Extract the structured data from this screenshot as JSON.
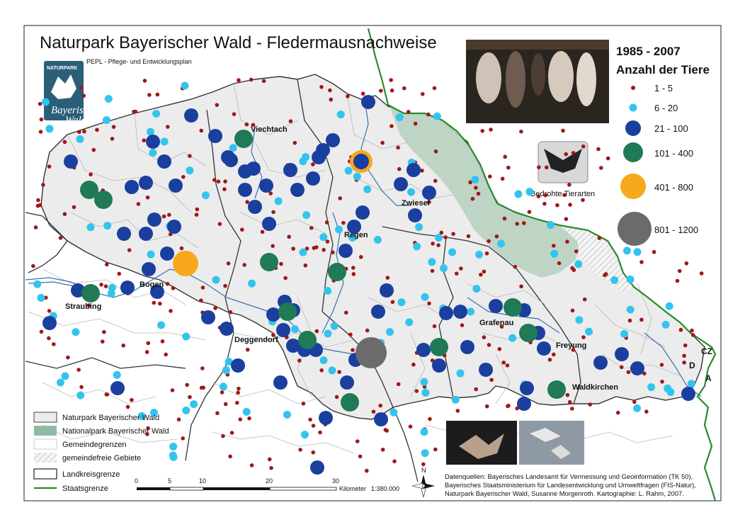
{
  "title": "Naturpark Bayerischer Wald - Fledermausnachweise",
  "subtitle": "PEPL - Pflege- und Entwicklungsplan",
  "period": "1985 - 2007",
  "count_legend": {
    "heading": "Anzahl der Tiere",
    "classes": [
      {
        "label": "1 - 5",
        "color": "#a01818"
      },
      {
        "label": "6 - 20",
        "color": "#33c4ee"
      },
      {
        "label": "21 - 100",
        "color": "#1a3f9e"
      },
      {
        "label": "101 - 400",
        "color": "#1f7a55"
      },
      {
        "label": "401 - 800",
        "color": "#f7a81b"
      },
      {
        "label": "801 - 1200",
        "color": "#6b6b6b"
      }
    ]
  },
  "badge_text": "Bedrohte Tierarten",
  "logo": {
    "top_text": "NATURPARK",
    "name_line1": "Bayerischer",
    "name_line2": "Wald"
  },
  "towns": [
    "Viechtach",
    "Zwiesel",
    "Regen",
    "Bogen",
    "Straubing",
    "Deggendorf",
    "Grafenau",
    "Freyung",
    "Waldkirchen"
  ],
  "countries": [
    "CZ",
    "D",
    "A"
  ],
  "area_legend": [
    {
      "label": "Naturpark Bayerischer Wald",
      "swatch": "naturpark"
    },
    {
      "label": "Nationalpark Bayerischer Wald",
      "swatch": "nationalpark"
    },
    {
      "label": "Gemeindegrenzen",
      "swatch": "gemeinde"
    },
    {
      "label": "gemeindefreie Gebiete",
      "swatch": "hatched"
    },
    {
      "label": "Landkreisgrenze",
      "swatch": "landkreis"
    },
    {
      "label": "Staatsgrenze",
      "swatch": "staat"
    }
  ],
  "scale": {
    "ticks": [
      "0",
      "5",
      "10",
      "20",
      "30"
    ],
    "unit": "Kilometer",
    "ratio": "1:380.000"
  },
  "north_label": "N",
  "sources": [
    "Datenquellen: Bayerisches Landesamt für Vermessung und Geoinformation (TK 50),",
    "Bayerisches Staatsministerium für Landesentwicklung und Umweltfragen (FIS-Natur),",
    "Naturpark Bayerischer Wald, Susanne Morgenroth. Kartographie: L. Rahm, 2007."
  ],
  "colors": {
    "naturpark_fill": "#ececec",
    "nationalpark_fill": "#b9d3c2",
    "river": "#3a6fb3",
    "border": "#2a8a2a"
  }
}
